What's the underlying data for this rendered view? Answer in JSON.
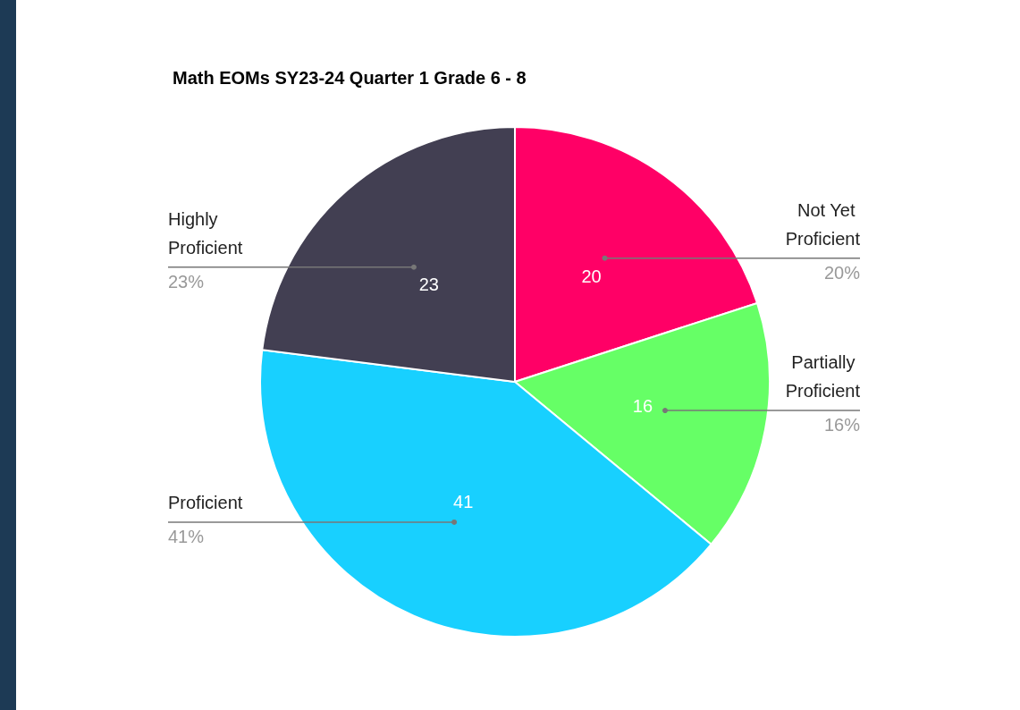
{
  "chart_data": {
    "type": "pie",
    "title": "Math EOMs SY23-24 Quarter 1 Grade 6 - 8",
    "categories": [
      "Not Yet Proficient",
      "Partially Proficient",
      "Proficient",
      "Highly Proficient"
    ],
    "values": [
      20,
      16,
      41,
      23
    ],
    "colors": [
      "#ff0066",
      "#66ff66",
      "#18d0ff",
      "#423f52"
    ],
    "data_labels": true,
    "annotations": [
      "20%",
      "16%",
      "41%",
      "23%"
    ],
    "legend": false
  }
}
